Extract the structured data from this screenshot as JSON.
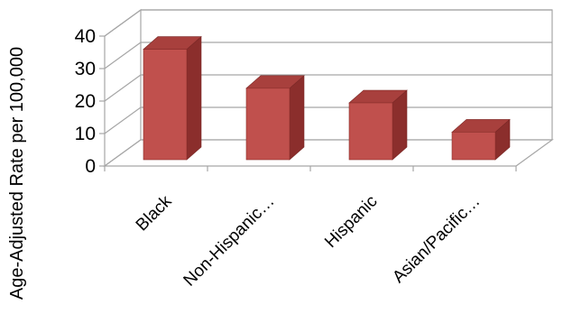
{
  "chart_data": {
    "type": "bar",
    "categories": [
      "Black",
      "Non-Hispanic…",
      "Hispanic",
      "Asian/Pacific…"
    ],
    "series": [
      {
        "values": [
          34,
          22,
          17.5,
          8.5
        ]
      }
    ],
    "ylabel": "Age-Adjusted Rate per 100,000",
    "xlabel": "",
    "ylim": [
      0,
      40
    ],
    "yticks": [
      0,
      10,
      20,
      30,
      40
    ],
    "grid": true,
    "style": "3d-column",
    "bar_color": "#c0504d"
  }
}
